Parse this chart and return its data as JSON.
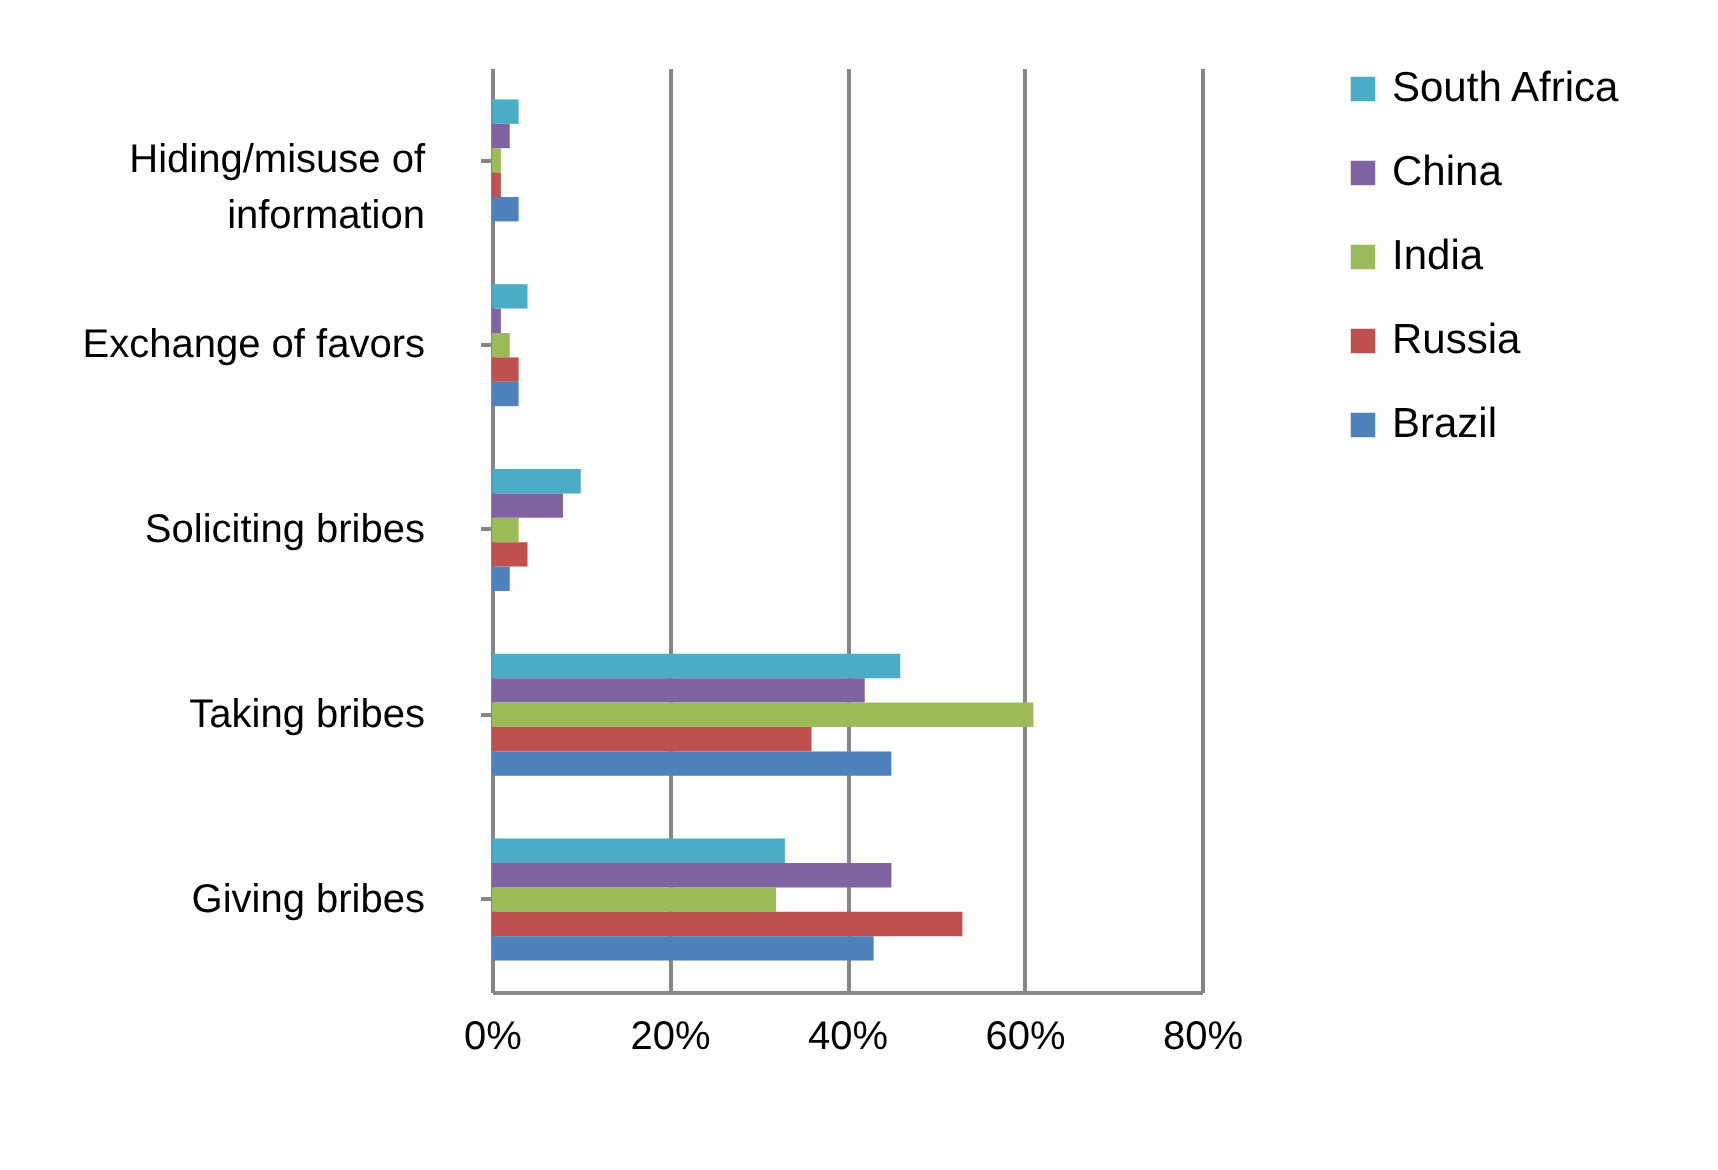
{
  "chart_data": {
    "type": "bar",
    "orientation": "horizontal",
    "categories": [
      "Hiding/misuse of information",
      "Exchange of favors",
      "Soliciting bribes",
      "Taking bribes",
      "Giving bribes"
    ],
    "series": [
      {
        "name": "South Africa",
        "color": "#4bacc6",
        "values": [
          3,
          4,
          10,
          46,
          33
        ]
      },
      {
        "name": "China",
        "color": "#8064a2",
        "values": [
          2,
          1,
          8,
          42,
          45
        ]
      },
      {
        "name": "India",
        "color": "#9bbb59",
        "values": [
          1,
          2,
          3,
          61,
          32
        ]
      },
      {
        "name": "Russia",
        "color": "#c0504d",
        "values": [
          1,
          3,
          4,
          36,
          53
        ]
      },
      {
        "name": "Brazil",
        "color": "#4f81bd",
        "values": [
          3,
          3,
          2,
          45,
          43
        ]
      }
    ],
    "xlim": [
      0,
      80
    ],
    "xticks": [
      {
        "value": 0,
        "label": "0%"
      },
      {
        "value": 20,
        "label": "20%"
      },
      {
        "value": 40,
        "label": "40%"
      },
      {
        "value": 60,
        "label": "60%"
      },
      {
        "value": 80,
        "label": "80%"
      }
    ],
    "grid": "x",
    "legend": "right"
  }
}
